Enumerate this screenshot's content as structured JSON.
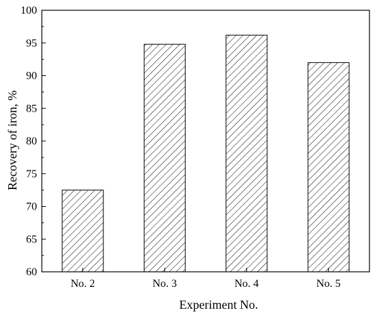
{
  "chart_data": {
    "type": "bar",
    "title": "",
    "xlabel": "Experiment No.",
    "ylabel": "Recovery of iron, %",
    "categories": [
      "No. 2",
      "No. 3",
      "No. 4",
      "No. 5"
    ],
    "values": [
      72.5,
      94.8,
      96.2,
      92.0
    ],
    "ylim": [
      60,
      100
    ],
    "yticks": [
      60,
      65,
      70,
      75,
      80,
      85,
      90,
      95,
      100
    ],
    "grid": false,
    "legend": "none",
    "bar_fill": "hatched",
    "colors": {
      "bar_stroke": "#000000",
      "hatch": "#000000",
      "axis": "#000000",
      "background": "#ffffff"
    }
  }
}
